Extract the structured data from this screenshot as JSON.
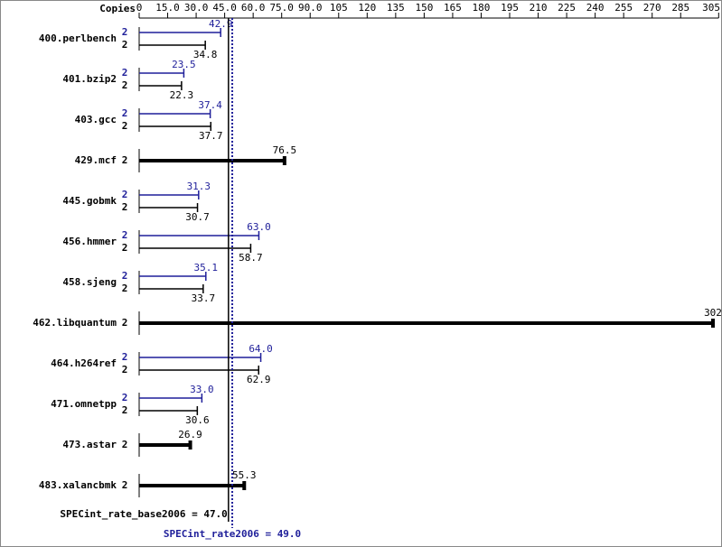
{
  "chart_data": {
    "type": "bar",
    "orientation": "horizontal",
    "axis_label": "Copies",
    "categories": [
      "400.perlbench",
      "401.bzip2",
      "403.gcc",
      "429.mcf",
      "445.gobmk",
      "456.hmmer",
      "458.sjeng",
      "462.libquantum",
      "464.h264ref",
      "471.omnetpp",
      "473.astar",
      "483.xalancbmk"
    ],
    "xlim": [
      0,
      305
    ],
    "xticks": [
      0,
      {
        "value": 15,
        "label": "15.0"
      },
      {
        "value": 30,
        "label": "30.0"
      },
      {
        "value": 45,
        "label": "45.0"
      },
      {
        "value": 60,
        "label": "60.0"
      },
      {
        "value": 75,
        "label": "75.0"
      },
      {
        "value": 90,
        "label": "90.0"
      },
      105,
      120,
      135,
      150,
      165,
      180,
      195,
      210,
      225,
      240,
      255,
      270,
      285,
      305
    ],
    "series": [
      {
        "color": "#1f1f9a",
        "values": [
          42.9,
          23.5,
          37.4,
          null,
          31.3,
          63.0,
          35.1,
          null,
          64.0,
          33.0,
          null,
          null
        ],
        "value_labels": [
          "42.9",
          "23.5",
          "37.4",
          null,
          "31.3",
          "63.0",
          "35.1",
          null,
          "64.0",
          "33.0",
          null,
          null
        ],
        "copies": [
          2,
          2,
          2,
          null,
          2,
          2,
          2,
          null,
          2,
          2,
          null,
          null
        ]
      },
      {
        "color": "#000000",
        "values": [
          34.8,
          22.3,
          37.7,
          76.5,
          30.7,
          58.7,
          33.7,
          302,
          62.9,
          30.6,
          26.9,
          55.3
        ],
        "value_labels": [
          "34.8",
          "22.3",
          "37.7",
          "76.5",
          "30.7",
          "58.7",
          "33.7",
          "302",
          "62.9",
          "30.6",
          "26.9",
          "55.3"
        ],
        "copies": [
          2,
          2,
          2,
          2,
          2,
          2,
          2,
          2,
          2,
          2,
          2,
          2
        ]
      }
    ],
    "reference_lines": [
      {
        "label": "SPECint_rate_base2006 = 47.0",
        "value": 47,
        "color": "#000000"
      },
      {
        "label": "SPECint_rate2006 = 49.0",
        "value": 49,
        "color": "#1f1f9a"
      }
    ]
  }
}
